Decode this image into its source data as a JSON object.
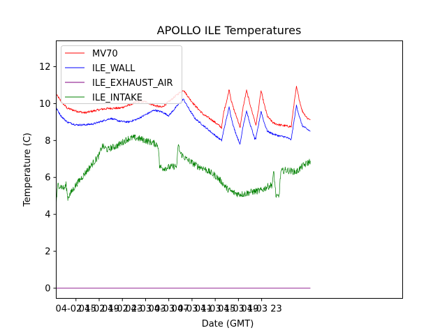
{
  "chart_data": {
    "type": "line",
    "title": "APOLLO ILE Temperatures",
    "xlabel": "Date (GMT)",
    "ylabel": "Temperature (C)",
    "x_unit": "hours since 04-02 00:00 GMT",
    "xlim": [
      11.6,
      71.3
    ],
    "ylim": [
      -0.55,
      13.4
    ],
    "grid": false,
    "legend_position": "top-left",
    "x_ticks": [
      {
        "value": 15,
        "label": "04-02 15"
      },
      {
        "value": 19,
        "label": "04-02 19"
      },
      {
        "value": 23,
        "label": "04-02 23"
      },
      {
        "value": 27,
        "label": "04-03 03"
      },
      {
        "value": 31,
        "label": "04-03 07"
      },
      {
        "value": 35,
        "label": "04-03 11"
      },
      {
        "value": 39,
        "label": "04-03 15"
      },
      {
        "value": 43,
        "label": "04-03 19"
      },
      {
        "value": 47,
        "label": "04-03 23"
      }
    ],
    "y_ticks": [
      {
        "value": 0,
        "label": "0"
      },
      {
        "value": 2,
        "label": "2"
      },
      {
        "value": 4,
        "label": "4"
      },
      {
        "value": 6,
        "label": "6"
      },
      {
        "value": 8,
        "label": "8"
      },
      {
        "value": 10,
        "label": "10"
      },
      {
        "value": 12,
        "label": "12"
      }
    ],
    "series": [
      {
        "name": "MV70",
        "color": "#ff0000",
        "noise": 0.06,
        "points": [
          [
            11.6,
            10.5
          ],
          [
            12.5,
            10.1
          ],
          [
            13.5,
            9.75
          ],
          [
            15,
            9.6
          ],
          [
            16.5,
            9.5
          ],
          [
            18,
            9.6
          ],
          [
            19.5,
            9.7
          ],
          [
            21,
            9.75
          ],
          [
            22.5,
            9.75
          ],
          [
            24,
            9.9
          ],
          [
            25.5,
            10.1
          ],
          [
            27,
            10.1
          ],
          [
            28.5,
            9.9
          ],
          [
            29.8,
            9.8
          ],
          [
            31,
            10.1
          ],
          [
            32.5,
            10.5
          ],
          [
            33.5,
            10.75
          ],
          [
            34.5,
            10.3
          ],
          [
            35.5,
            9.9
          ],
          [
            37,
            9.4
          ],
          [
            38.5,
            9.1
          ],
          [
            40.1,
            8.7
          ],
          [
            40.5,
            9.6
          ],
          [
            41.1,
            10.3
          ],
          [
            41.4,
            10.8
          ],
          [
            41.8,
            10.1
          ],
          [
            42.3,
            9.6
          ],
          [
            42.9,
            9.1
          ],
          [
            43.3,
            8.7
          ],
          [
            43.8,
            9.8
          ],
          [
            44.4,
            10.7
          ],
          [
            44.9,
            10.1
          ],
          [
            45.4,
            9.5
          ],
          [
            45.8,
            9.1
          ],
          [
            46.0,
            8.8
          ],
          [
            46.5,
            9.8
          ],
          [
            46.9,
            10.7
          ],
          [
            47.4,
            10.0
          ],
          [
            48.0,
            9.3
          ],
          [
            49,
            8.95
          ],
          [
            50,
            8.85
          ],
          [
            51,
            8.8
          ],
          [
            52.1,
            8.75
          ],
          [
            52.5,
            9.8
          ],
          [
            53,
            10.9
          ],
          [
            53.5,
            10.2
          ],
          [
            54,
            9.6
          ],
          [
            54.9,
            9.2
          ],
          [
            55.4,
            9.15
          ]
        ]
      },
      {
        "name": "ILE_WALL",
        "color": "#0000ff",
        "noise": 0.05,
        "points": [
          [
            11.6,
            9.75
          ],
          [
            12.5,
            9.3
          ],
          [
            13.5,
            9.0
          ],
          [
            15,
            8.85
          ],
          [
            16.5,
            8.85
          ],
          [
            18,
            8.9
          ],
          [
            19.5,
            9.05
          ],
          [
            21,
            9.2
          ],
          [
            22.5,
            9.05
          ],
          [
            24,
            9.0
          ],
          [
            25.5,
            9.15
          ],
          [
            27,
            9.4
          ],
          [
            28.5,
            9.65
          ],
          [
            29.8,
            9.55
          ],
          [
            31,
            9.35
          ],
          [
            32.5,
            9.9
          ],
          [
            33.5,
            10.25
          ],
          [
            34.5,
            9.7
          ],
          [
            35.5,
            9.2
          ],
          [
            37,
            8.8
          ],
          [
            38.5,
            8.4
          ],
          [
            40.1,
            8.0
          ],
          [
            40.5,
            8.6
          ],
          [
            41.1,
            9.4
          ],
          [
            41.4,
            9.8
          ],
          [
            41.8,
            9.2
          ],
          [
            42.3,
            8.6
          ],
          [
            42.9,
            8.1
          ],
          [
            43.3,
            7.8
          ],
          [
            43.8,
            8.8
          ],
          [
            44.4,
            9.6
          ],
          [
            44.9,
            9.0
          ],
          [
            45.4,
            8.5
          ],
          [
            45.8,
            8.1
          ],
          [
            46.0,
            8.1
          ],
          [
            46.5,
            8.9
          ],
          [
            46.9,
            9.6
          ],
          [
            47.4,
            9.0
          ],
          [
            48.0,
            8.5
          ],
          [
            49,
            8.35
          ],
          [
            50,
            8.25
          ],
          [
            51,
            8.2
          ],
          [
            52.1,
            8.05
          ],
          [
            52.5,
            8.9
          ],
          [
            53,
            9.9
          ],
          [
            53.5,
            9.3
          ],
          [
            54,
            8.8
          ],
          [
            54.9,
            8.6
          ],
          [
            55.4,
            8.5
          ]
        ]
      },
      {
        "name": "ILE_EXHAUST_AIR",
        "color": "#800080",
        "noise": 0,
        "points": [
          [
            11.6,
            0
          ],
          [
            55.4,
            0
          ]
        ]
      },
      {
        "name": "ILE_INTAKE",
        "color": "#008000",
        "noise": 0.18,
        "points": [
          [
            11.6,
            4.6
          ],
          [
            11.9,
            5.6
          ],
          [
            12.5,
            5.5
          ],
          [
            13,
            5.4
          ],
          [
            13.3,
            5.6
          ],
          [
            13.6,
            4.9
          ],
          [
            14,
            5.1
          ],
          [
            15,
            5.6
          ],
          [
            16,
            6.0
          ],
          [
            17,
            6.4
          ],
          [
            18,
            6.8
          ],
          [
            19,
            7.2
          ],
          [
            19.5,
            7.7
          ],
          [
            20.5,
            7.5
          ],
          [
            21,
            7.6
          ],
          [
            22,
            7.7
          ],
          [
            23,
            7.9
          ],
          [
            24,
            8.1
          ],
          [
            25,
            8.15
          ],
          [
            26,
            8.1
          ],
          [
            27,
            8.0
          ],
          [
            28,
            7.9
          ],
          [
            28.9,
            7.8
          ],
          [
            29.2,
            7.7
          ],
          [
            29.4,
            6.6
          ],
          [
            30,
            6.5
          ],
          [
            31,
            6.55
          ],
          [
            32,
            6.6
          ],
          [
            32.4,
            6.6
          ],
          [
            32.6,
            7.8
          ],
          [
            33,
            7.3
          ],
          [
            34,
            7.0
          ],
          [
            35,
            6.8
          ],
          [
            36,
            6.6
          ],
          [
            37,
            6.5
          ],
          [
            38,
            6.3
          ],
          [
            39,
            6.1
          ],
          [
            40,
            5.8
          ],
          [
            41,
            5.4
          ],
          [
            42,
            5.2
          ],
          [
            43,
            5.1
          ],
          [
            44,
            5.1
          ],
          [
            45,
            5.2
          ],
          [
            46,
            5.25
          ],
          [
            47,
            5.3
          ],
          [
            48,
            5.5
          ],
          [
            48.8,
            5.6
          ],
          [
            49.1,
            6.3
          ],
          [
            49.5,
            4.9
          ],
          [
            50,
            5.0
          ],
          [
            50.3,
            6.3
          ],
          [
            51,
            6.4
          ],
          [
            52,
            6.35
          ],
          [
            53,
            6.3
          ],
          [
            54,
            6.6
          ],
          [
            55,
            6.8
          ],
          [
            55.4,
            6.9
          ]
        ]
      }
    ]
  }
}
